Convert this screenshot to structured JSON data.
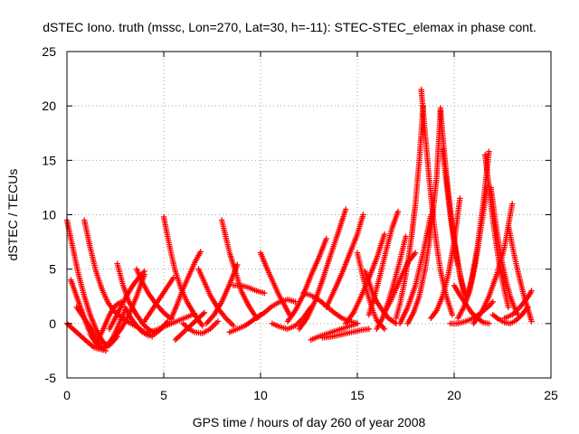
{
  "chart_data": {
    "type": "scatter",
    "title": "dSTEC Iono. truth (mssc, Lon=270, Lat=30, h=-11): STEC-STEC_elemax in phase cont.",
    "xlabel": "GPS time / hours of day 260 of year 2008",
    "ylabel": "dSTEC  / TECUs",
    "xlim": [
      0,
      25
    ],
    "ylim": [
      -5,
      25
    ],
    "xticks": [
      0,
      5,
      10,
      15,
      20,
      25
    ],
    "yticks": [
      -5,
      0,
      5,
      10,
      15,
      20,
      25
    ],
    "grid": true,
    "marker": "+",
    "color": "#ff0000",
    "series": [
      {
        "x": [
          0.0,
          0.3,
          0.6,
          0.9,
          1.2,
          1.5,
          1.8,
          2.0
        ],
        "values": [
          9.5,
          7.0,
          4.5,
          2.5,
          0.8,
          -0.5,
          -1.5,
          -2.0
        ]
      },
      {
        "x": [
          0.0,
          0.5,
          1.0,
          1.4,
          1.8,
          2.2,
          2.6
        ],
        "values": [
          0.0,
          -0.8,
          -1.6,
          -2.2,
          -2.4,
          -2.0,
          -1.2
        ]
      },
      {
        "x": [
          0.2,
          0.5,
          0.8,
          1.1,
          1.4,
          1.7,
          2.0
        ],
        "values": [
          4.0,
          2.5,
          1.0,
          -0.5,
          -1.5,
          -2.3,
          -2.5
        ]
      },
      {
        "x": [
          0.5,
          1.0,
          1.5,
          1.8,
          2.1,
          2.4,
          2.8,
          3.2,
          3.6,
          4.0
        ],
        "values": [
          1.5,
          0.2,
          -1.2,
          -1.8,
          -1.9,
          -1.4,
          -0.5,
          0.8,
          2.5,
          4.5
        ]
      },
      {
        "x": [
          0.9,
          1.2,
          1.5,
          1.8,
          2.1,
          2.4,
          2.8,
          3.2,
          3.6,
          4.0,
          4.4
        ],
        "values": [
          9.5,
          7.0,
          4.8,
          3.2,
          2.0,
          1.2,
          0.6,
          0.1,
          -0.3,
          -0.8,
          -1.2
        ]
      },
      {
        "x": [
          1.2,
          1.5,
          1.8,
          2.1,
          2.4,
          2.7,
          3.0
        ],
        "values": [
          -1.0,
          -1.8,
          -2.2,
          -2.0,
          -1.2,
          0.0,
          1.2
        ]
      },
      {
        "x": [
          1.6,
          1.8,
          2.0,
          2.2,
          2.4,
          2.6,
          2.8
        ],
        "values": [
          -1.5,
          -0.8,
          0.0,
          0.8,
          1.4,
          1.8,
          2.0
        ]
      },
      {
        "x": [
          2.6,
          2.9,
          3.2,
          3.6,
          4.0,
          4.4
        ],
        "values": [
          5.5,
          3.5,
          2.0,
          0.8,
          -0.2,
          -0.8
        ]
      },
      {
        "x": [
          2.2,
          2.5,
          2.8,
          3.1,
          3.4,
          3.7,
          4.0
        ],
        "values": [
          -0.5,
          0.5,
          1.6,
          2.6,
          3.5,
          4.2,
          4.8
        ]
      },
      {
        "x": [
          3.0,
          3.3,
          3.6,
          3.9,
          4.2,
          4.5,
          4.8,
          5.2
        ],
        "values": [
          1.5,
          0.5,
          -0.2,
          -0.8,
          -1.1,
          -1.0,
          -0.6,
          0.2
        ]
      },
      {
        "x": [
          3.6,
          3.9,
          4.2,
          4.6,
          5.0,
          5.4
        ],
        "values": [
          5.0,
          3.8,
          2.8,
          1.8,
          1.0,
          0.4
        ]
      },
      {
        "x": [
          4.2,
          4.6,
          5.0,
          5.4,
          5.8,
          6.2,
          6.6
        ],
        "values": [
          -0.8,
          -0.6,
          -0.3,
          0.0,
          0.3,
          0.6,
          0.9
        ]
      },
      {
        "x": [
          4.0,
          4.3,
          4.6,
          4.9,
          5.2,
          5.5
        ],
        "values": [
          0.2,
          1.0,
          1.8,
          2.6,
          3.4,
          4.2
        ]
      },
      {
        "x": [
          5.0,
          5.2,
          5.4,
          5.6,
          5.9,
          6.2,
          6.6,
          7.0
        ],
        "values": [
          9.8,
          8.0,
          6.3,
          4.8,
          3.2,
          2.0,
          0.8,
          -0.2
        ]
      },
      {
        "x": [
          5.4,
          5.7,
          6.0,
          6.3,
          6.6,
          6.9
        ],
        "values": [
          0.5,
          1.8,
          3.2,
          4.4,
          5.6,
          6.6
        ]
      },
      {
        "x": [
          5.6,
          5.9,
          6.2,
          6.5,
          6.8,
          7.1
        ],
        "values": [
          -1.5,
          -1.0,
          -0.5,
          0.0,
          0.5,
          1.0
        ]
      },
      {
        "x": [
          6.0,
          6.3,
          6.6,
          7.0,
          7.4,
          7.8
        ],
        "values": [
          0.0,
          -0.5,
          -0.8,
          -0.9,
          -0.5,
          0.2
        ]
      },
      {
        "x": [
          6.8,
          7.1,
          7.4,
          7.8,
          8.2,
          8.6
        ],
        "values": [
          5.0,
          3.8,
          2.6,
          1.4,
          0.5,
          -0.2
        ]
      },
      {
        "x": [
          7.2,
          7.6,
          8.0,
          8.4,
          8.8
        ],
        "values": [
          0.0,
          0.8,
          2.0,
          3.6,
          5.4
        ]
      },
      {
        "x": [
          8.0,
          8.2,
          8.4,
          8.7,
          9.0,
          9.4,
          9.8
        ],
        "values": [
          9.5,
          8.0,
          6.5,
          4.8,
          3.0,
          1.6,
          0.5
        ]
      },
      {
        "x": [
          8.4,
          8.8,
          9.2,
          9.6,
          10.0
        ],
        "values": [
          -0.8,
          -0.5,
          -0.2,
          0.3,
          0.8
        ]
      },
      {
        "x": [
          8.6,
          9.0,
          9.4,
          9.8,
          10.2
        ],
        "values": [
          3.5,
          3.5,
          3.3,
          3.0,
          2.8
        ]
      },
      {
        "x": [
          10.0,
          10.3,
          10.6,
          10.9,
          11.2,
          11.5
        ],
        "values": [
          6.5,
          5.2,
          4.0,
          2.8,
          1.8,
          0.8
        ]
      },
      {
        "x": [
          9.8,
          10.2,
          10.6,
          11.0,
          11.4,
          11.8
        ],
        "values": [
          0.5,
          1.0,
          1.6,
          2.0,
          2.2,
          2.0
        ]
      },
      {
        "x": [
          10.6,
          11.0,
          11.4,
          11.8,
          12.2,
          12.6
        ],
        "values": [
          0.0,
          -0.3,
          -0.5,
          -0.2,
          0.5,
          1.5
        ]
      },
      {
        "x": [
          11.4,
          11.8,
          12.2,
          12.6,
          13.0,
          13.4
        ],
        "values": [
          0.2,
          1.2,
          2.6,
          4.4,
          6.0,
          7.8
        ]
      },
      {
        "x": [
          12.0,
          12.4,
          12.8,
          13.2,
          13.6,
          14.0,
          14.4
        ],
        "values": [
          -0.5,
          0.5,
          2.0,
          4.0,
          6.2,
          8.3,
          10.5
        ]
      },
      {
        "x": [
          12.2,
          12.6,
          13.0,
          13.4,
          13.8,
          14.2,
          14.6,
          15.0
        ],
        "values": [
          2.8,
          2.6,
          2.2,
          1.6,
          1.0,
          0.5,
          0.2,
          0.0
        ]
      },
      {
        "x": [
          12.6,
          13.0,
          13.5,
          14.0,
          14.5,
          15.0
        ],
        "values": [
          -1.5,
          -1.2,
          -0.9,
          -0.6,
          -0.3,
          0.0
        ]
      },
      {
        "x": [
          13.2,
          13.7,
          14.2,
          14.7,
          15.2,
          15.6
        ],
        "values": [
          -1.3,
          -1.2,
          -1.0,
          -0.8,
          -0.6,
          -0.5
        ]
      },
      {
        "x": [
          13.4,
          13.8,
          14.2,
          14.6,
          15.0,
          15.3
        ],
        "values": [
          1.5,
          3.0,
          4.6,
          6.4,
          8.2,
          10.0
        ]
      },
      {
        "x": [
          14.4,
          14.8,
          15.2,
          15.6,
          16.0,
          16.4
        ],
        "values": [
          0.0,
          1.0,
          2.5,
          4.2,
          6.0,
          8.2
        ]
      },
      {
        "x": [
          15.0,
          15.2,
          15.4,
          15.6,
          15.8,
          16.0,
          16.4
        ],
        "values": [
          6.5,
          5.0,
          3.5,
          2.3,
          1.2,
          0.3,
          -0.5
        ]
      },
      {
        "x": [
          15.4,
          15.6,
          15.8,
          16.0,
          16.3,
          16.6,
          17.0
        ],
        "values": [
          4.8,
          3.8,
          2.8,
          2.0,
          1.2,
          0.5,
          0.0
        ]
      },
      {
        "x": [
          15.6,
          15.9,
          16.2,
          16.5,
          16.8,
          17.1
        ],
        "values": [
          0.8,
          2.6,
          4.6,
          6.8,
          8.8,
          10.3
        ]
      },
      {
        "x": [
          16.0,
          16.3,
          16.6,
          16.9,
          17.2,
          17.5
        ],
        "values": [
          -0.5,
          0.5,
          2.0,
          3.8,
          5.8,
          8.0
        ]
      },
      {
        "x": [
          16.4,
          16.7,
          17.0,
          17.3,
          17.6,
          18.0
        ],
        "values": [
          1.0,
          2.0,
          3.2,
          4.4,
          5.6,
          6.5
        ]
      },
      {
        "x": [
          17.0,
          17.2,
          17.4,
          17.6,
          17.8,
          18.0,
          18.2,
          18.4
        ],
        "values": [
          0.5,
          1.8,
          3.5,
          5.5,
          8.0,
          11.0,
          15.0,
          20.0
        ]
      },
      {
        "x": [
          17.2,
          17.6,
          18.0,
          18.4,
          18.8
        ],
        "values": [
          0.0,
          1.5,
          3.5,
          6.5,
          10.0
        ]
      },
      {
        "x": [
          18.3,
          18.5,
          18.7,
          18.9,
          19.1,
          19.3,
          19.6,
          19.9
        ],
        "values": [
          21.5,
          17.5,
          13.5,
          10.0,
          7.2,
          4.8,
          2.5,
          0.8
        ]
      },
      {
        "x": [
          17.6,
          17.9,
          18.2,
          18.5,
          18.8,
          19.1,
          19.3
        ],
        "values": [
          0.0,
          1.0,
          2.5,
          5.0,
          8.5,
          13.5,
          19.8
        ]
      },
      {
        "x": [
          19.3,
          19.5,
          19.7,
          19.9,
          20.1,
          20.3,
          20.5
        ],
        "values": [
          19.5,
          15.5,
          12.0,
          9.0,
          6.5,
          4.4,
          2.8
        ]
      },
      {
        "x": [
          19.4,
          19.6,
          19.8,
          20.0,
          20.2,
          20.4,
          20.6
        ],
        "values": [
          16.0,
          13.0,
          10.0,
          7.5,
          5.5,
          3.8,
          2.5
        ]
      },
      {
        "x": [
          18.8,
          19.1,
          19.4,
          19.7,
          20.0,
          20.3
        ],
        "values": [
          0.5,
          1.2,
          2.5,
          4.5,
          7.5,
          11.5
        ]
      },
      {
        "x": [
          20.0,
          20.3,
          20.6,
          20.9,
          21.2,
          21.5,
          21.8
        ],
        "values": [
          3.5,
          2.6,
          1.8,
          1.0,
          0.5,
          0.1,
          0.0
        ]
      },
      {
        "x": [
          20.2,
          20.5,
          20.8,
          21.1,
          21.4,
          21.7
        ],
        "values": [
          0.5,
          1.5,
          3.0,
          5.5,
          9.0,
          12.5
        ]
      },
      {
        "x": [
          20.6,
          20.9,
          21.2,
          21.5,
          21.8
        ],
        "values": [
          2.0,
          4.0,
          7.0,
          11.0,
          15.8
        ]
      },
      {
        "x": [
          21.6,
          21.8,
          22.0,
          22.2,
          22.4,
          22.6,
          22.8
        ],
        "values": [
          15.5,
          12.5,
          9.5,
          7.0,
          4.8,
          3.0,
          1.5
        ]
      },
      {
        "x": [
          21.9,
          22.1,
          22.3,
          22.5,
          22.7,
          22.9,
          23.1,
          23.3
        ],
        "values": [
          12.5,
          9.8,
          7.4,
          5.4,
          3.8,
          2.5,
          1.5,
          0.8
        ]
      },
      {
        "x": [
          21.0,
          21.4,
          21.8,
          22.2,
          22.6,
          23.0
        ],
        "values": [
          0.0,
          1.0,
          2.5,
          4.5,
          7.0,
          11.0
        ]
      },
      {
        "x": [
          22.8,
          23.0,
          23.2,
          23.4,
          23.6,
          23.8,
          24.0
        ],
        "values": [
          9.0,
          7.2,
          5.5,
          4.0,
          2.6,
          1.4,
          0.2
        ]
      },
      {
        "x": [
          22.6,
          23.0,
          23.4,
          23.8,
          24.0
        ],
        "values": [
          0.5,
          0.8,
          1.5,
          2.4,
          3.0
        ]
      },
      {
        "x": [
          22.0,
          22.3,
          22.6,
          22.9,
          23.2,
          23.5,
          23.8
        ],
        "values": [
          0.8,
          0.4,
          0.1,
          0.0,
          0.3,
          0.8,
          1.5
        ]
      },
      {
        "x": [
          19.8,
          20.2,
          20.6,
          21.0,
          21.4,
          21.8,
          22.0
        ],
        "values": [
          0.0,
          0.0,
          0.2,
          0.5,
          1.0,
          1.6,
          2.0
        ]
      }
    ]
  }
}
